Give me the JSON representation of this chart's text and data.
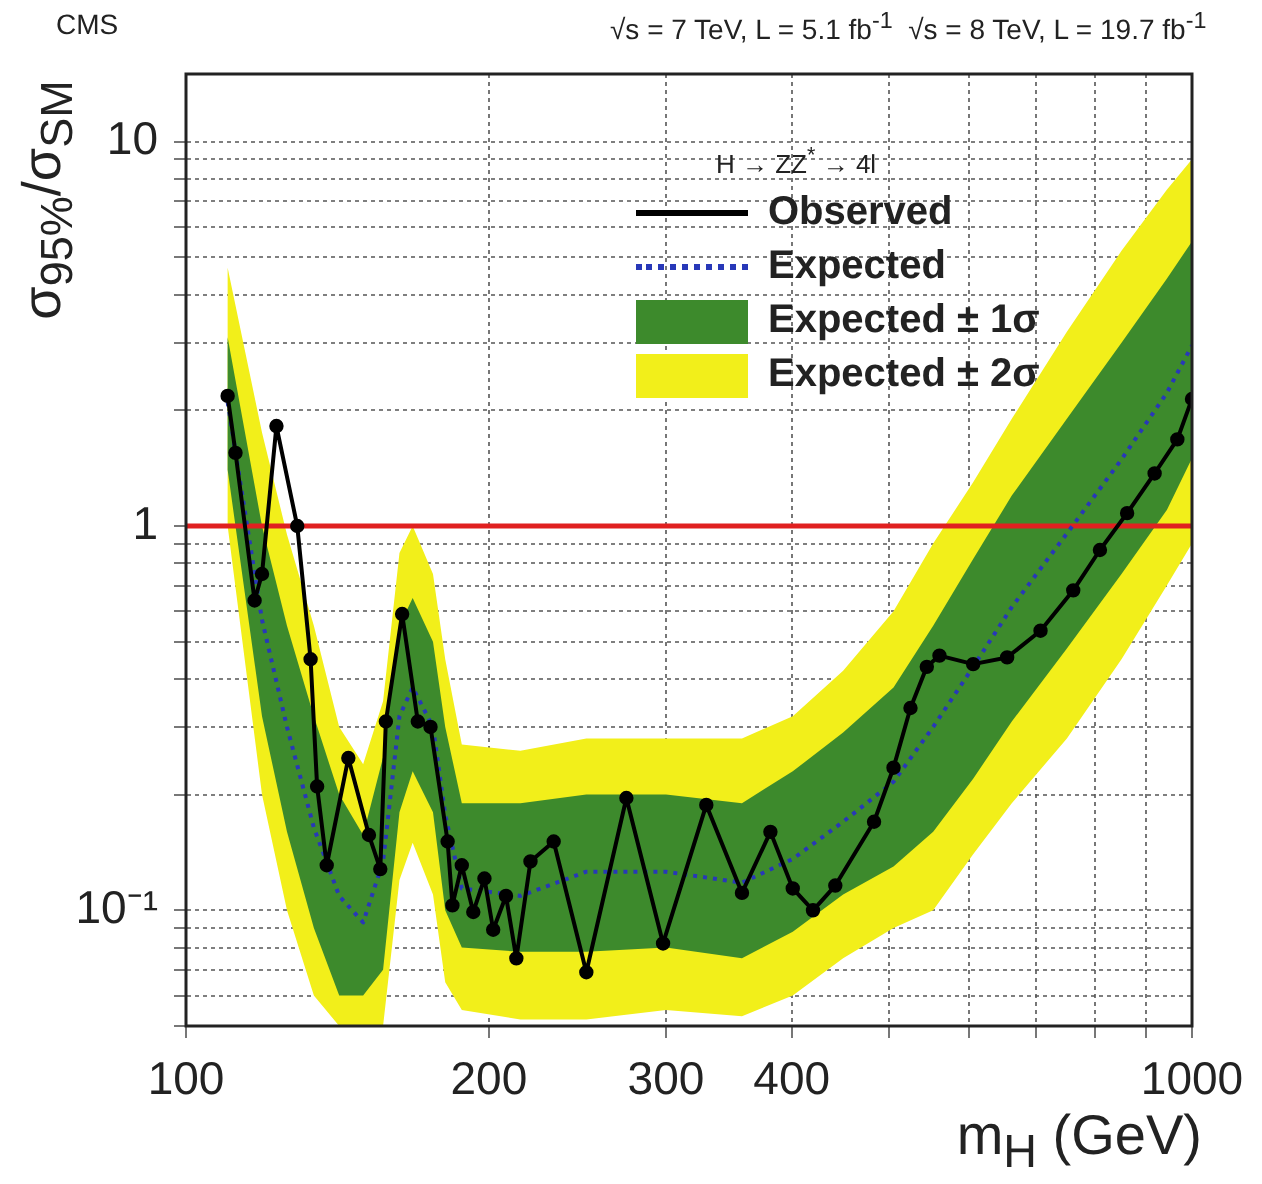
{
  "chart_data": {
    "type": "line",
    "title": "CMS",
    "subtitle": "√s = 7 TeV, L = 5.1 fb$^{-1}$  √s = 8 TeV, L = 19.7 fb$^{-1}$",
    "xlabel": "m$_{H}$ (GeV)",
    "ylabel": "σ$_{95%}$/σ$_{SM}$",
    "legend_title": "H → ZZ$^{*}$ → 4l",
    "log": "xy",
    "grid": true,
    "legend": "top right",
    "xlim": [
      100,
      1000
    ],
    "ylim": [
      0.05,
      15
    ],
    "xticks": [
      100,
      200,
      300,
      400,
      {
        "value": 500,
        "label": null
      },
      {
        "value": 600,
        "label": null
      },
      {
        "value": 700,
        "label": null
      },
      {
        "value": 800,
        "label": null
      },
      {
        "value": 900,
        "label": null
      },
      1000
    ],
    "yticks": [
      {
        "value": 0.05,
        "label": null
      },
      {
        "value": 0.06,
        "label": null
      },
      {
        "value": 0.07,
        "label": null
      },
      {
        "value": 0.08,
        "label": null
      },
      {
        "value": 0.09,
        "label": null
      },
      {
        "value": 0.1,
        "label": "10⁻¹"
      },
      {
        "value": 0.2,
        "label": null
      },
      {
        "value": 0.3,
        "label": null
      },
      {
        "value": 0.4,
        "label": null
      },
      {
        "value": 0.5,
        "label": null
      },
      {
        "value": 0.6,
        "label": null
      },
      {
        "value": 0.7,
        "label": null
      },
      {
        "value": 0.8,
        "label": null
      },
      {
        "value": 0.9,
        "label": null
      },
      1,
      {
        "value": 2,
        "label": null
      },
      {
        "value": 3,
        "label": null
      },
      {
        "value": 4,
        "label": null
      },
      {
        "value": 5,
        "label": null
      },
      {
        "value": 6,
        "label": null
      },
      {
        "value": 7,
        "label": null
      },
      {
        "value": 8,
        "label": null
      },
      {
        "value": 9,
        "label": null
      },
      10
    ],
    "ref_lines": [
      {
        "axis": "y",
        "value": 1,
        "color": "#e02020"
      }
    ],
    "series": [
      {
        "name": "Observed",
        "type": "line",
        "color": "#000000",
        "marker": "circle",
        "line_style": "solid",
        "x": [
          110,
          112,
          117,
          119,
          123,
          129,
          133,
          135,
          138,
          145,
          152,
          156,
          158,
          164,
          170,
          175,
          182,
          184,
          188,
          193,
          198,
          202,
          208,
          213,
          220,
          232,
          250,
          274,
          298,
          329,
          357,
          381,
          401,
          420,
          442,
          483,
          505,
          525,
          545,
          561,
          606,
          655,
          707,
          762,
          810,
          862,
          918,
          967,
          1000
        ],
        "values": [
          2.18,
          1.55,
          0.64,
          0.75,
          1.82,
          1.0,
          0.45,
          0.21,
          0.131,
          0.249,
          0.157,
          0.128,
          0.31,
          0.59,
          0.31,
          0.3,
          0.151,
          0.103,
          0.131,
          0.099,
          0.121,
          0.089,
          0.109,
          0.075,
          0.134,
          0.151,
          0.069,
          0.196,
          0.082,
          0.188,
          0.111,
          0.16,
          0.114,
          0.1,
          0.116,
          0.17,
          0.235,
          0.336,
          0.43,
          0.46,
          0.437,
          0.455,
          0.534,
          0.68,
          0.866,
          1.08,
          1.37,
          1.68,
          2.14
        ]
      },
      {
        "name": "Expected",
        "type": "line",
        "color": "#2838b8",
        "marker": "none",
        "line_style": "dotted",
        "x": [
          110,
          119,
          126,
          134,
          142,
          150,
          157,
          163,
          168,
          176,
          181,
          188,
          215,
          250,
          300,
          357,
          401,
          450,
          505,
          553,
          606,
          662,
          751,
          851,
          944,
          1000
        ],
        "values": [
          2.1,
          0.57,
          0.3,
          0.164,
          0.109,
          0.093,
          0.134,
          0.32,
          0.38,
          0.3,
          0.177,
          0.114,
          0.109,
          0.126,
          0.126,
          0.118,
          0.136,
          0.17,
          0.216,
          0.3,
          0.43,
          0.615,
          0.956,
          1.49,
          2.22,
          2.95
        ]
      },
      {
        "name": "Expected ± 1σ",
        "type": "line",
        "color": "#3d8a2c",
        "x": [
          110,
          119,
          126,
          134,
          142,
          150,
          157,
          163,
          168,
          176,
          181,
          188,
          215,
          250,
          300,
          357,
          401,
          450,
          505,
          553,
          606,
          662,
          751,
          851,
          944,
          1000
        ],
        "values": [
          null,
          null,
          null,
          null,
          null,
          null,
          null,
          null,
          null,
          null,
          null,
          null,
          null,
          null,
          null,
          null,
          null,
          null,
          null,
          null,
          null,
          null,
          null,
          null,
          null,
          null
        ],
        "lower": [
          1.4,
          0.32,
          0.16,
          0.09,
          0.06,
          0.06,
          0.07,
          0.18,
          0.23,
          0.18,
          0.1,
          0.08,
          0.078,
          0.078,
          0.08,
          0.075,
          0.088,
          0.11,
          0.13,
          0.16,
          0.22,
          0.31,
          0.48,
          0.75,
          1.1,
          1.5
        ],
        "upper": [
          3.1,
          1.0,
          0.55,
          0.32,
          0.2,
          0.157,
          0.25,
          0.55,
          0.65,
          0.5,
          0.3,
          0.19,
          0.19,
          0.2,
          0.2,
          0.19,
          0.23,
          0.29,
          0.38,
          0.55,
          0.82,
          1.2,
          1.9,
          3.0,
          4.4,
          5.5
        ]
      },
      {
        "name": "Expected ± 2σ",
        "type": "line",
        "color": "#f2ef1a",
        "x": [
          110,
          119,
          126,
          134,
          142,
          150,
          157,
          163,
          168,
          176,
          181,
          188,
          215,
          250,
          300,
          357,
          401,
          450,
          505,
          553,
          606,
          662,
          751,
          851,
          944,
          1000
        ],
        "values": [
          null,
          null,
          null,
          null,
          null,
          null,
          null,
          null,
          null,
          null,
          null,
          null,
          null,
          null,
          null,
          null,
          null,
          null,
          null,
          null,
          null,
          null,
          null,
          null,
          null,
          null
        ],
        "lower": [
          1.0,
          0.2,
          0.1,
          0.06,
          0.05,
          0.05,
          0.05,
          0.12,
          0.15,
          0.11,
          0.065,
          0.055,
          0.052,
          0.052,
          0.055,
          0.053,
          0.06,
          0.075,
          0.09,
          0.1,
          0.14,
          0.19,
          0.28,
          0.45,
          0.7,
          0.9
        ],
        "upper": [
          4.7,
          1.75,
          0.95,
          0.55,
          0.3,
          0.24,
          0.35,
          0.85,
          1.0,
          0.75,
          0.45,
          0.27,
          0.26,
          0.28,
          0.28,
          0.28,
          0.32,
          0.42,
          0.6,
          0.9,
          1.3,
          1.9,
          3.2,
          5.2,
          7.5,
          9.0
        ]
      }
    ]
  }
}
